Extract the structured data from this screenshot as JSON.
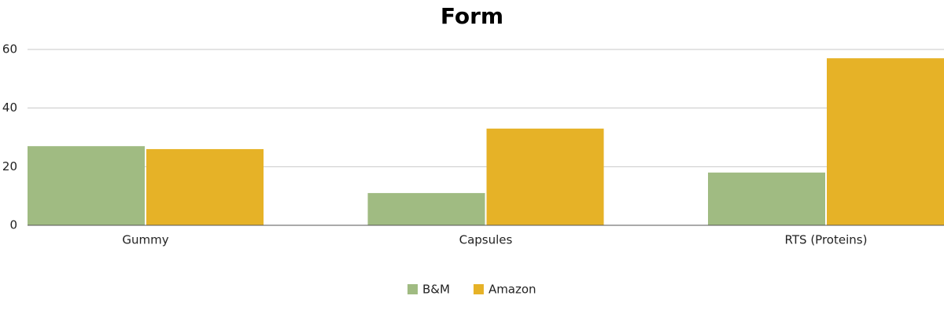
{
  "chart_data": {
    "type": "bar",
    "title": "Form",
    "categories": [
      "Gummy",
      "Capsules",
      "RTS (Proteins)"
    ],
    "series": [
      {
        "name": "B&M",
        "color": "#a0bb82",
        "values": [
          27,
          11,
          18
        ]
      },
      {
        "name": "Amazon",
        "color": "#e6b227",
        "values": [
          26,
          33,
          57
        ]
      }
    ],
    "ylim": [
      0,
      60
    ],
    "yticks": [
      0,
      20,
      40,
      60
    ],
    "grid": true,
    "legend": "bottom"
  }
}
